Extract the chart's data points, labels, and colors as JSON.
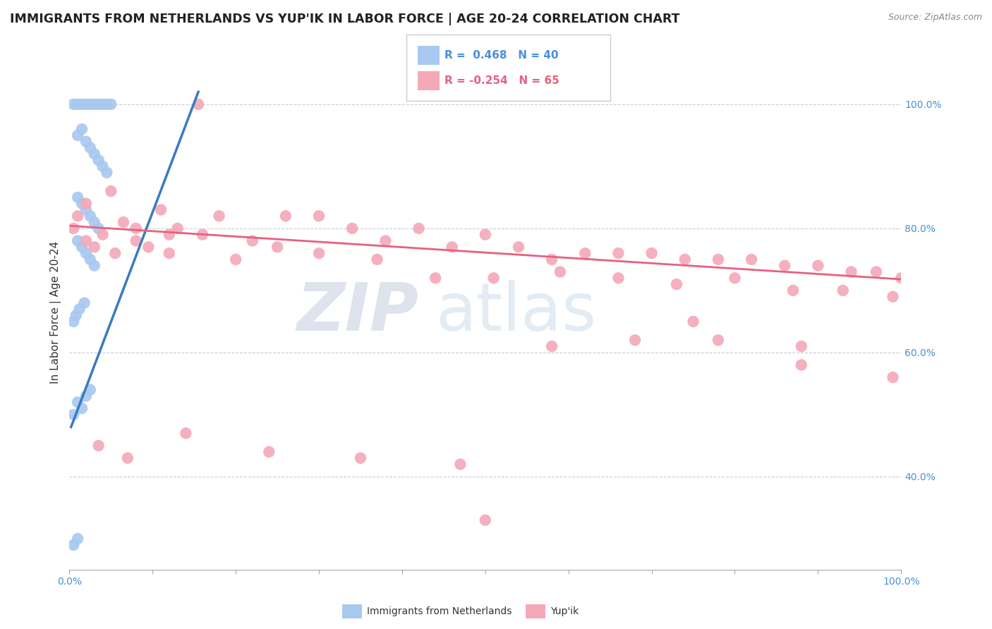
{
  "title": "IMMIGRANTS FROM NETHERLANDS VS YUP'IK IN LABOR FORCE | AGE 20-24 CORRELATION CHART",
  "source": "Source: ZipAtlas.com",
  "ylabel": "In Labor Force | Age 20-24",
  "xlim": [
    0.0,
    1.0
  ],
  "ylim": [
    0.25,
    1.08
  ],
  "color_blue": "#a8c8f0",
  "color_pink": "#f4a8b8",
  "color_blue_line": "#3a7abf",
  "color_pink_line": "#e86080",
  "watermark_zip": "ZIP",
  "watermark_atlas": "atlas",
  "blue_scatter_x": [
    0.005,
    0.01,
    0.015,
    0.02,
    0.025,
    0.03,
    0.035,
    0.04,
    0.045,
    0.05,
    0.01,
    0.015,
    0.02,
    0.025,
    0.03,
    0.035,
    0.04,
    0.045,
    0.01,
    0.015,
    0.02,
    0.025,
    0.03,
    0.035,
    0.01,
    0.015,
    0.02,
    0.025,
    0.03,
    0.005,
    0.01,
    0.015,
    0.02,
    0.025,
    0.005,
    0.01,
    0.005,
    0.008,
    0.012,
    0.018
  ],
  "blue_scatter_y": [
    1.0,
    1.0,
    1.0,
    1.0,
    1.0,
    1.0,
    1.0,
    1.0,
    1.0,
    1.0,
    0.95,
    0.96,
    0.94,
    0.93,
    0.92,
    0.91,
    0.9,
    0.89,
    0.85,
    0.84,
    0.83,
    0.82,
    0.81,
    0.8,
    0.78,
    0.77,
    0.76,
    0.75,
    0.74,
    0.5,
    0.52,
    0.51,
    0.53,
    0.54,
    0.29,
    0.3,
    0.65,
    0.66,
    0.67,
    0.68
  ],
  "pink_scatter_x": [
    0.005,
    0.01,
    0.02,
    0.03,
    0.04,
    0.055,
    0.065,
    0.08,
    0.095,
    0.11,
    0.13,
    0.155,
    0.18,
    0.22,
    0.26,
    0.3,
    0.34,
    0.38,
    0.42,
    0.46,
    0.5,
    0.54,
    0.58,
    0.62,
    0.66,
    0.7,
    0.74,
    0.78,
    0.82,
    0.86,
    0.9,
    0.94,
    0.97,
    1.0,
    0.02,
    0.05,
    0.08,
    0.12,
    0.16,
    0.2,
    0.25,
    0.3,
    0.37,
    0.44,
    0.51,
    0.59,
    0.66,
    0.73,
    0.8,
    0.87,
    0.93,
    0.99,
    0.035,
    0.07,
    0.14,
    0.24,
    0.35,
    0.47,
    0.58,
    0.68,
    0.78,
    0.88,
    0.99,
    0.5,
    0.75,
    0.88,
    0.12
  ],
  "pink_scatter_y": [
    0.8,
    0.82,
    0.78,
    0.77,
    0.79,
    0.76,
    0.81,
    0.78,
    0.77,
    0.83,
    0.8,
    1.0,
    0.82,
    0.78,
    0.82,
    0.82,
    0.8,
    0.78,
    0.8,
    0.77,
    0.79,
    0.77,
    0.75,
    0.76,
    0.76,
    0.76,
    0.75,
    0.75,
    0.75,
    0.74,
    0.74,
    0.73,
    0.73,
    0.72,
    0.84,
    0.86,
    0.8,
    0.79,
    0.79,
    0.75,
    0.77,
    0.76,
    0.75,
    0.72,
    0.72,
    0.73,
    0.72,
    0.71,
    0.72,
    0.7,
    0.7,
    0.69,
    0.45,
    0.43,
    0.47,
    0.44,
    0.43,
    0.42,
    0.61,
    0.62,
    0.62,
    0.61,
    0.56,
    0.33,
    0.65,
    0.58,
    0.76
  ],
  "blue_trend_x": [
    0.002,
    0.155
  ],
  "blue_trend_y": [
    0.48,
    1.02
  ],
  "pink_trend_x": [
    0.002,
    1.0
  ],
  "pink_trend_y": [
    0.804,
    0.718
  ]
}
